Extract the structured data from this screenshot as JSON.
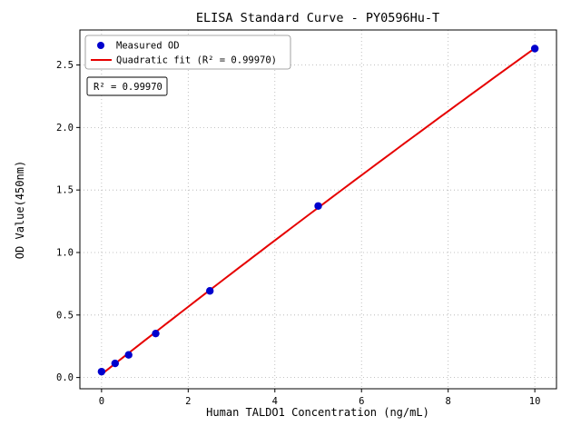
{
  "chart_data": {
    "type": "scatter",
    "title": "ELISA Standard Curve - PY0596Hu-T",
    "xlabel": "Human TALDO1 Concentration (ng/mL)",
    "ylabel": "OD Value(450nm)",
    "xlim": [
      -0.5,
      10.5
    ],
    "ylim": [
      -0.09,
      2.78
    ],
    "xticks": [
      0,
      2,
      4,
      6,
      8,
      10
    ],
    "xtick_labels": [
      "0",
      "2",
      "4",
      "6",
      "8",
      "10"
    ],
    "yticks": [
      0.0,
      0.5,
      1.0,
      1.5,
      2.0,
      2.5
    ],
    "ytick_labels": [
      "0.0",
      "0.5",
      "1.0",
      "1.5",
      "2.0",
      "2.5"
    ],
    "grid": true,
    "legend_position": "upper left",
    "series": [
      {
        "name": "Measured OD",
        "type": "scatter",
        "color": "#0000cd",
        "x": [
          0,
          0.313,
          0.625,
          1.25,
          2.5,
          5,
          10
        ],
        "y": [
          0.047,
          0.113,
          0.181,
          0.352,
          0.693,
          1.372,
          2.631
        ]
      },
      {
        "name": "Quadratic fit (R² = 0.99970)",
        "type": "line",
        "color": "#e60000",
        "fit": "quadratic"
      }
    ],
    "annotation": "R² = 0.99970",
    "r_squared": "0.99970",
    "colors": {
      "point": "#0000cd",
      "line": "#e60000",
      "grid": "#b0b0b0",
      "axis": "#000000"
    }
  }
}
